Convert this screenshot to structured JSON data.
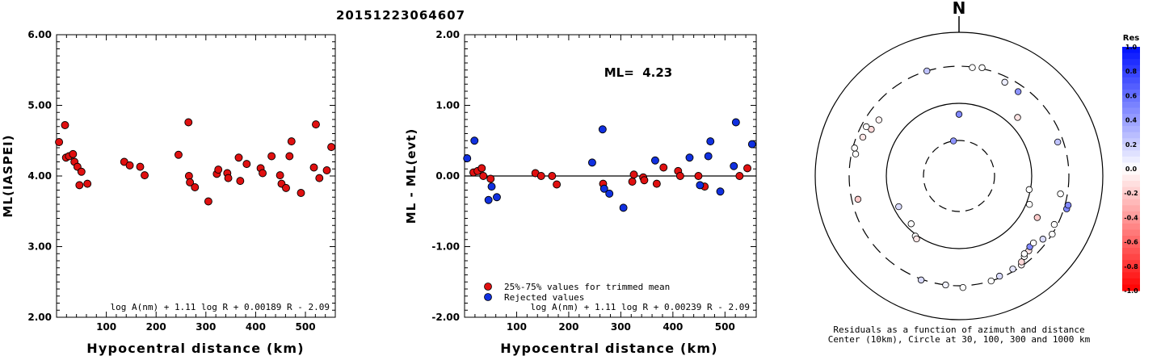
{
  "page_title": "20151223064607",
  "chart_data": [
    {
      "type": "scatter",
      "xlabel": "Hypocentral distance (km)",
      "ylabel": "ML(IASPEI)",
      "xlim": [
        0,
        560
      ],
      "ylim": [
        2.0,
        6.0
      ],
      "x_ticks": [
        "100",
        "200",
        "300",
        "400",
        "500"
      ],
      "y_ticks": [
        "2.00",
        "3.00",
        "4.00",
        "5.00",
        "6.00"
      ],
      "formula": "log A(nm) + 1.11 log R + 0.00189 R - 2.09",
      "color": "#e01010",
      "points": [
        [
          5,
          4.48
        ],
        [
          17,
          4.72
        ],
        [
          19,
          4.26
        ],
        [
          25,
          4.28
        ],
        [
          33,
          4.31
        ],
        [
          36,
          4.2
        ],
        [
          42,
          4.13
        ],
        [
          46,
          3.87
        ],
        [
          50,
          4.06
        ],
        [
          62,
          3.89
        ],
        [
          136,
          4.2
        ],
        [
          147,
          4.15
        ],
        [
          168,
          4.13
        ],
        [
          177,
          4.01
        ],
        [
          245,
          4.3
        ],
        [
          265,
          4.76
        ],
        [
          266,
          4.0
        ],
        [
          268,
          3.91
        ],
        [
          278,
          3.84
        ],
        [
          305,
          3.64
        ],
        [
          322,
          4.03
        ],
        [
          325,
          4.09
        ],
        [
          343,
          4.04
        ],
        [
          345,
          3.97
        ],
        [
          366,
          4.26
        ],
        [
          369,
          3.93
        ],
        [
          382,
          4.17
        ],
        [
          410,
          4.11
        ],
        [
          414,
          4.04
        ],
        [
          432,
          4.28
        ],
        [
          449,
          4.01
        ],
        [
          452,
          3.89
        ],
        [
          461,
          3.83
        ],
        [
          468,
          4.28
        ],
        [
          472,
          4.49
        ],
        [
          491,
          3.76
        ],
        [
          517,
          4.12
        ],
        [
          521,
          4.73
        ],
        [
          528,
          3.97
        ],
        [
          543,
          4.08
        ],
        [
          552,
          4.41
        ]
      ]
    },
    {
      "type": "scatter",
      "xlabel": "Hypocentral distance (km)",
      "ylabel": "ML - ML(evt)",
      "xlim": [
        0,
        560
      ],
      "ylim": [
        -2.0,
        2.0
      ],
      "x_ticks": [
        "100",
        "200",
        "300",
        "400",
        "500"
      ],
      "y_ticks": [
        "-2.00",
        "-1.00",
        "0.00",
        "1.00",
        "2.00"
      ],
      "annotation": "ML=  4.23",
      "formula": "log A(nm) + 1.11 log R + 0.00239 R - 2.09",
      "series": [
        {
          "name": "25%-75% values for trimmed mean",
          "color": "#e01010",
          "points": [
            [
              17,
              0.05
            ],
            [
              25,
              0.07
            ],
            [
              33,
              0.11
            ],
            [
              36,
              0.0
            ],
            [
              50,
              -0.04
            ],
            [
              136,
              0.04
            ],
            [
              147,
              0.0
            ],
            [
              168,
              0.0
            ],
            [
              177,
              -0.12
            ],
            [
              266,
              -0.11
            ],
            [
              322,
              -0.08
            ],
            [
              325,
              0.02
            ],
            [
              343,
              -0.02
            ],
            [
              345,
              -0.06
            ],
            [
              369,
              -0.11
            ],
            [
              382,
              0.12
            ],
            [
              410,
              0.07
            ],
            [
              414,
              0.0
            ],
            [
              449,
              0.0
            ],
            [
              461,
              -0.15
            ],
            [
              528,
              0.0
            ],
            [
              543,
              0.11
            ]
          ]
        },
        {
          "name": "Rejected values",
          "color": "#1030e0",
          "points": [
            [
              5,
              0.25
            ],
            [
              19,
              0.5
            ],
            [
              46,
              -0.34
            ],
            [
              52,
              -0.15
            ],
            [
              62,
              -0.3
            ],
            [
              245,
              0.19
            ],
            [
              265,
              0.66
            ],
            [
              268,
              -0.18
            ],
            [
              278,
              -0.25
            ],
            [
              305,
              -0.45
            ],
            [
              366,
              0.22
            ],
            [
              432,
              0.26
            ],
            [
              452,
              -0.13
            ],
            [
              468,
              0.28
            ],
            [
              472,
              0.49
            ],
            [
              491,
              -0.22
            ],
            [
              517,
              0.14
            ],
            [
              521,
              0.76
            ],
            [
              552,
              0.45
            ]
          ]
        }
      ]
    },
    {
      "type": "scatter",
      "title": "N",
      "caption_line1": "Residuals as a function of azimuth and distance",
      "caption_line2": "Center (10km), Circle at 30, 100, 300 and 1000 km",
      "colorbar": {
        "title": "Res",
        "ticks": [
          "1.0",
          "0.8",
          "0.6",
          "0.4",
          "0.2",
          "0.0",
          "-0.2",
          "-0.4",
          "-0.6",
          "-0.8",
          "-1.0"
        ],
        "positive_color": "#0010ff",
        "negative_color": "#ff0000"
      },
      "points_azimuth_distance_residual": [
        [
          -17,
          300,
          0.25
        ],
        [
          7,
          295,
          0.0
        ],
        [
          12,
          310,
          0.0
        ],
        [
          26,
          255,
          0.07
        ],
        [
          35,
          245,
          0.45
        ],
        [
          45,
          135,
          -0.11
        ],
        [
          -62,
          220,
          -0.15
        ],
        [
          -68,
          250,
          -0.1
        ],
        [
          -62,
          260,
          0.0
        ],
        [
          -78,
          265,
          0.0
        ],
        [
          -75,
          285,
          0.0
        ],
        [
          -103,
          250,
          -0.2
        ],
        [
          -117,
          85,
          0.15
        ],
        [
          -135,
          85,
          0.0
        ],
        [
          -144,
          105,
          0.0
        ],
        [
          -146,
          110,
          -0.1
        ],
        [
          -173,
          300,
          0.05
        ],
        [
          -160,
          310,
          0.15
        ],
        [
          178,
          320,
          0.0
        ],
        [
          163,
          300,
          0.0
        ],
        [
          158,
          285,
          0.15
        ],
        [
          150,
          280,
          0.1
        ],
        [
          145,
          290,
          -0.05
        ],
        [
          144,
          270,
          -0.15
        ],
        [
          141,
          250,
          0.0
        ],
        [
          137,
          240,
          -0.1
        ],
        [
          140,
          235,
          0.0
        ],
        [
          135,
          225,
          0.5
        ],
        [
          132,
          225,
          0.0
        ],
        [
          127,
          260,
          0.15
        ],
        [
          122,
          300,
          0.0
        ],
        [
          117,
          275,
          0.0
        ],
        [
          112,
          110,
          0.0
        ],
        [
          118,
          160,
          -0.2
        ],
        [
          107,
          330,
          0.5
        ],
        [
          105,
          335,
          0.5
        ],
        [
          100,
          245,
          0.0
        ],
        [
          71,
          255,
          0.25
        ],
        [
          -55,
          210,
          -0.05
        ],
        [
          -9,
          30,
          0.45
        ],
        [
          0,
          70,
          0.5
        ],
        [
          101,
          96,
          0.0
        ]
      ]
    }
  ]
}
